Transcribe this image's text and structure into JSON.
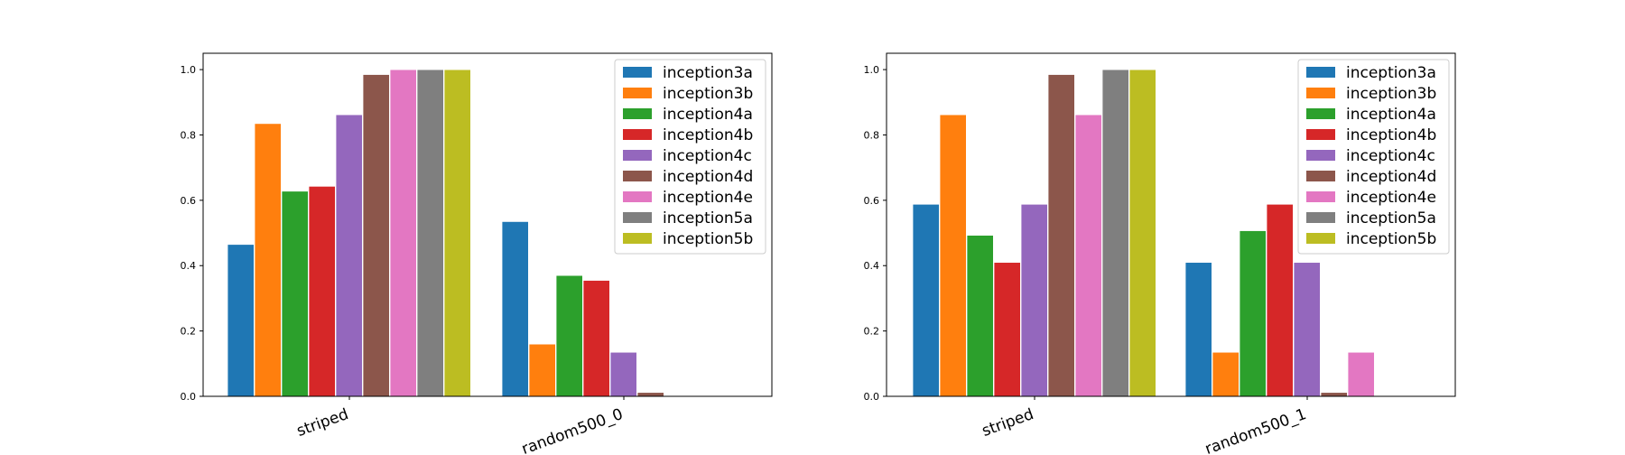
{
  "chart_data": [
    {
      "type": "bar",
      "categories": [
        "striped",
        "random500_0"
      ],
      "series": [
        {
          "name": "inception3a",
          "color": "#1f77b4",
          "values": [
            0.465,
            0.535
          ]
        },
        {
          "name": "inception3b",
          "color": "#ff7f0e",
          "values": [
            0.835,
            0.16
          ]
        },
        {
          "name": "inception4a",
          "color": "#2ca02c",
          "values": [
            0.628,
            0.37
          ]
        },
        {
          "name": "inception4b",
          "color": "#d62728",
          "values": [
            0.643,
            0.355
          ]
        },
        {
          "name": "inception4c",
          "color": "#9467bd",
          "values": [
            0.862,
            0.135
          ]
        },
        {
          "name": "inception4d",
          "color": "#8c564b",
          "values": [
            0.985,
            0.012
          ]
        },
        {
          "name": "inception4e",
          "color": "#e377c2",
          "values": [
            1.0,
            0.0
          ]
        },
        {
          "name": "inception5a",
          "color": "#7f7f7f",
          "values": [
            1.0,
            0.0
          ]
        },
        {
          "name": "inception5b",
          "color": "#bcbd22",
          "values": [
            1.0,
            0.0
          ]
        }
      ],
      "title": "",
      "xlabel": "",
      "ylabel": "",
      "ylim": [
        0,
        1.05
      ],
      "yticks": [
        "0.0",
        "0.2",
        "0.4",
        "0.6",
        "0.8",
        "1.0"
      ],
      "grid": false,
      "legend": "top-right"
    },
    {
      "type": "bar",
      "categories": [
        "striped",
        "random500_1"
      ],
      "series": [
        {
          "name": "inception3a",
          "color": "#1f77b4",
          "values": [
            0.588,
            0.41
          ]
        },
        {
          "name": "inception3b",
          "color": "#ff7f0e",
          "values": [
            0.862,
            0.135
          ]
        },
        {
          "name": "inception4a",
          "color": "#2ca02c",
          "values": [
            0.493,
            0.507
          ]
        },
        {
          "name": "inception4b",
          "color": "#d62728",
          "values": [
            0.41,
            0.588
          ]
        },
        {
          "name": "inception4c",
          "color": "#9467bd",
          "values": [
            0.588,
            0.41
          ]
        },
        {
          "name": "inception4d",
          "color": "#8c564b",
          "values": [
            0.985,
            0.012
          ]
        },
        {
          "name": "inception4e",
          "color": "#e377c2",
          "values": [
            0.862,
            0.135
          ]
        },
        {
          "name": "inception5a",
          "color": "#7f7f7f",
          "values": [
            1.0,
            0.0
          ]
        },
        {
          "name": "inception5b",
          "color": "#bcbd22",
          "values": [
            1.0,
            0.0
          ]
        }
      ],
      "title": "",
      "xlabel": "",
      "ylabel": "",
      "ylim": [
        0,
        1.05
      ],
      "yticks": [
        "0.0",
        "0.2",
        "0.4",
        "0.6",
        "0.8",
        "1.0"
      ],
      "grid": false,
      "legend": "top-right"
    }
  ]
}
